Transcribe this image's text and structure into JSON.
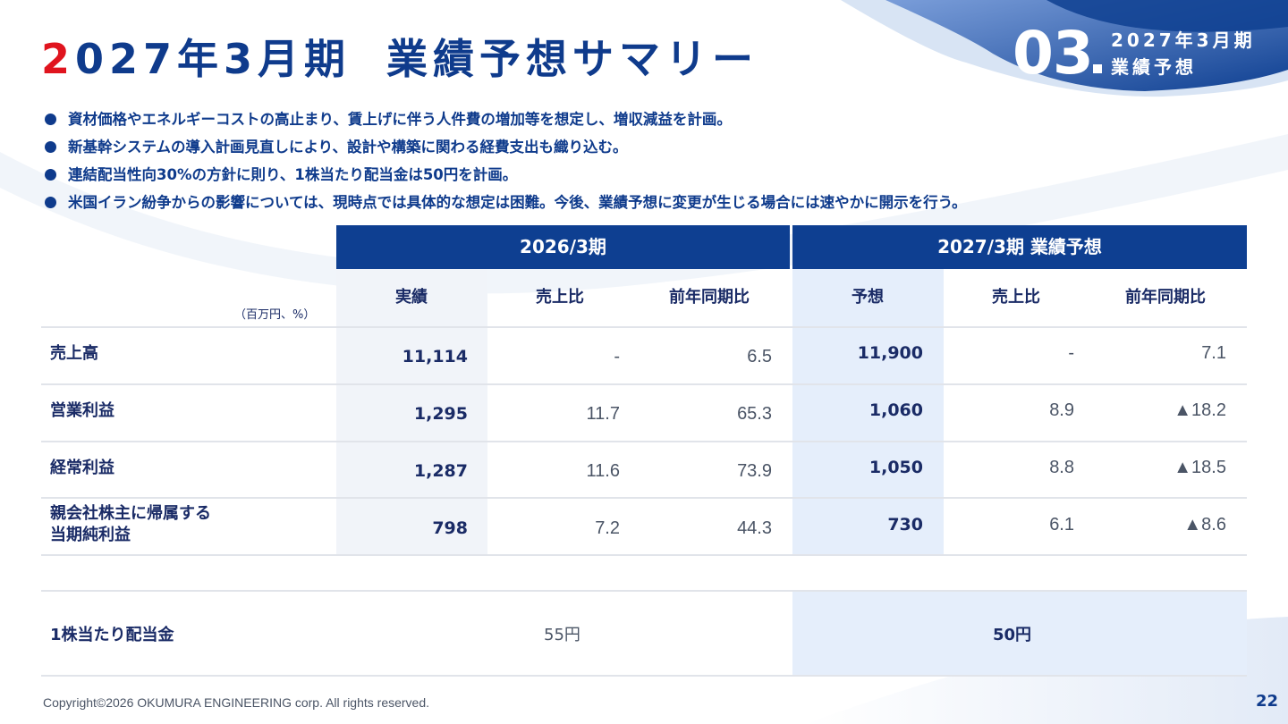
{
  "title": {
    "lead": "2",
    "rest": "027年3月期",
    "sub": "業績予想サマリー"
  },
  "section": {
    "number": "03",
    "label_line1": "2027年3月期",
    "label_line2": "業績予想"
  },
  "bullets": [
    "資材価格やエネルギーコストの高止まり、賃上げに伴う人件費の増加等を想定し、増収減益を計画。",
    "新基幹システムの導入計画見直しにより、設計や構築に関わる経費支出も織り込む。",
    "連結配当性向30%の方針に則り、1株当たり配当金は50円を計画。",
    "米国イラン紛争からの影響については、現時点では具体的な想定は困難。今後、業績予想に変更が生じる場合には速やかに開示を行う。"
  ],
  "table": {
    "unit": "（百万円、%）",
    "group_prev": "2026/3期",
    "group_next": "2027/3期 業績予想",
    "columns": [
      "実績",
      "売上比",
      "前年同期比",
      "予想",
      "売上比",
      "前年同期比"
    ],
    "rows": [
      {
        "label": "売上高",
        "values": [
          "11,114",
          "-",
          "6.5",
          "11,900",
          "-",
          "7.1"
        ]
      },
      {
        "label": "営業利益",
        "values": [
          "1,295",
          "11.7",
          "65.3",
          "1,060",
          "8.9",
          "▲18.2"
        ]
      },
      {
        "label": "経常利益",
        "values": [
          "1,287",
          "11.6",
          "73.9",
          "1,050",
          "8.8",
          "▲18.5"
        ]
      },
      {
        "label_line1": "親会社株主に帰属する",
        "label_line2": "当期純利益",
        "values": [
          "798",
          "7.2",
          "44.3",
          "730",
          "6.1",
          "▲8.6"
        ]
      }
    ],
    "dividend": {
      "label": "1株当たり配当金",
      "prev": "55円",
      "next": "50円"
    }
  },
  "footer": {
    "copyright": "Copyright©2026 OKUMURA ENGINEERING corp. All rights reserved.",
    "page": "22"
  },
  "colors": {
    "primary": "#0e3f91",
    "accent_red": "#e0141e",
    "shade_blue": "#e5eefb",
    "shade_gray": "#f1f4f9"
  }
}
